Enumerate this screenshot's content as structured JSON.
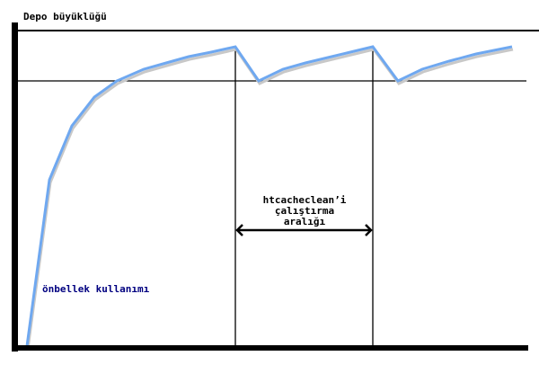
{
  "title": "Depo büyüklüğü",
  "interval_label": [
    "htcacheclean’i",
    "çalıştırma",
    "aralığı"
  ],
  "usage_label": "önbellek kullanımı",
  "colors": {
    "curve": "#6fa8f0",
    "axes": "#000000",
    "usage_label": "#000080"
  }
}
